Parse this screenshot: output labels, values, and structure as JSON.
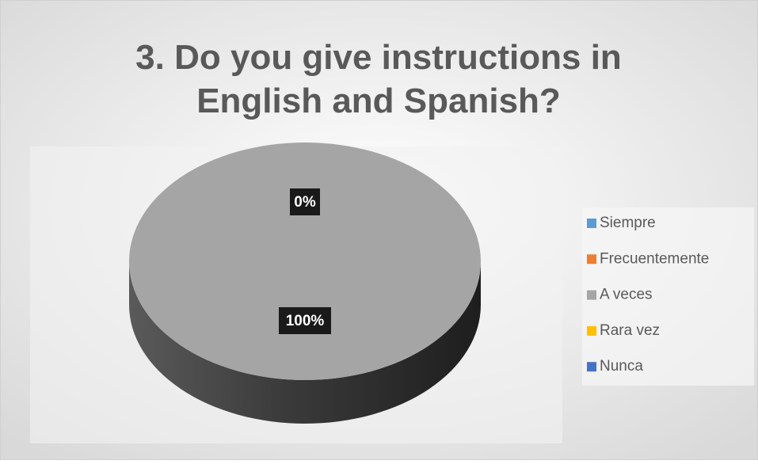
{
  "chart_data": {
    "type": "pie",
    "title": "3. Do you give instructions in English and Spanish?",
    "categories": [
      "Siempre",
      "Frecuentemente",
      "A veces",
      "Rara vez",
      "Nunca"
    ],
    "values": [
      0,
      0,
      100,
      0,
      0
    ],
    "value_labels": [
      "0%",
      null,
      "100%",
      null,
      null
    ],
    "colors": [
      "#5b9bd5",
      "#ed7d31",
      "#a5a5a5",
      "#ffc000",
      "#4472c4"
    ],
    "legend": "right"
  }
}
